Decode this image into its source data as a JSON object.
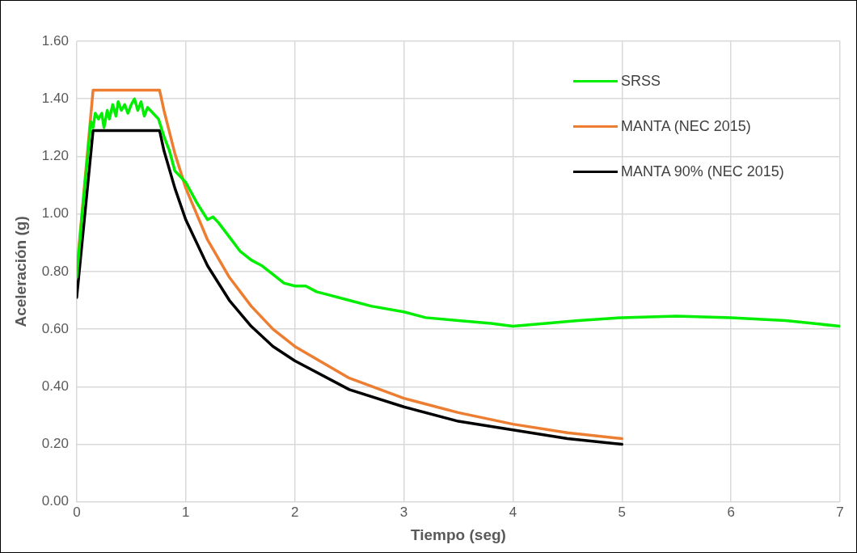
{
  "chart_data": {
    "type": "line",
    "xlabel": "Tiempo (seg)",
    "ylabel": "Aceleración (g)",
    "xlim": [
      0,
      7
    ],
    "xticks": [
      0,
      1,
      2,
      3,
      4,
      5,
      6,
      7
    ],
    "ylim": [
      0,
      1.6
    ],
    "yticks": [
      {
        "value": 0,
        "label": "0.00"
      },
      {
        "value": 0.2,
        "label": "0.20"
      },
      {
        "value": 0.4,
        "label": "0.40"
      },
      {
        "value": 0.6,
        "label": "0.60"
      },
      {
        "value": 0.8,
        "label": "0.80"
      },
      {
        "value": 1,
        "label": "1.00"
      },
      {
        "value": 1.2,
        "label": "1.20"
      },
      {
        "value": 1.4,
        "label": "1.40"
      },
      {
        "value": 1.6,
        "label": "1.60"
      }
    ],
    "grid": true,
    "legend": "top right",
    "marker": "none",
    "line_style": "solid",
    "series": [
      {
        "name": "SRSS",
        "color": "#00ee00",
        "x": [
          0,
          0.05,
          0.1,
          0.13,
          0.15,
          0.17,
          0.2,
          0.23,
          0.25,
          0.28,
          0.3,
          0.33,
          0.36,
          0.38,
          0.41,
          0.44,
          0.47,
          0.5,
          0.53,
          0.56,
          0.59,
          0.62,
          0.65,
          0.7,
          0.75,
          0.8,
          0.85,
          0.9,
          0.95,
          1,
          1.1,
          1.2,
          1.25,
          1.3,
          1.4,
          1.5,
          1.6,
          1.7,
          1.8,
          1.9,
          2,
          2.1,
          2.2,
          2.3,
          2.5,
          2.7,
          3,
          3.2,
          3.5,
          3.8,
          4,
          4.3,
          4.6,
          5,
          5.5,
          6,
          6.5,
          7
        ],
        "values": [
          0.78,
          1.0,
          1.2,
          1.32,
          1.3,
          1.35,
          1.33,
          1.35,
          1.3,
          1.36,
          1.33,
          1.38,
          1.34,
          1.39,
          1.36,
          1.38,
          1.35,
          1.38,
          1.4,
          1.36,
          1.39,
          1.34,
          1.37,
          1.35,
          1.33,
          1.27,
          1.22,
          1.15,
          1.13,
          1.11,
          1.04,
          0.98,
          0.99,
          0.97,
          0.92,
          0.87,
          0.84,
          0.82,
          0.79,
          0.76,
          0.75,
          0.75,
          0.73,
          0.72,
          0.7,
          0.68,
          0.66,
          0.64,
          0.63,
          0.62,
          0.61,
          0.62,
          0.63,
          0.64,
          0.645,
          0.64,
          0.63,
          0.61
        ]
      },
      {
        "name": "MANTA (NEC 2015)",
        "color": "#ed7d31",
        "x": [
          0,
          0.15,
          0.2,
          0.73,
          0.76,
          0.8,
          0.9,
          1,
          1.2,
          1.4,
          1.6,
          1.8,
          2,
          2.5,
          3,
          3.5,
          4,
          4.5,
          5
        ],
        "values": [
          0.8,
          1.43,
          1.43,
          1.43,
          1.43,
          1.36,
          1.21,
          1.09,
          0.91,
          0.78,
          0.68,
          0.6,
          0.54,
          0.43,
          0.36,
          0.31,
          0.27,
          0.24,
          0.22
        ]
      },
      {
        "name": "MANTA 90% (NEC 2015)",
        "color": "#000000",
        "x": [
          0,
          0.15,
          0.2,
          0.73,
          0.76,
          0.8,
          0.9,
          1,
          1.2,
          1.4,
          1.6,
          1.8,
          2,
          2.5,
          3,
          3.5,
          4,
          4.5,
          5
        ],
        "values": [
          0.71,
          1.29,
          1.29,
          1.29,
          1.29,
          1.22,
          1.09,
          0.98,
          0.82,
          0.7,
          0.61,
          0.54,
          0.49,
          0.39,
          0.33,
          0.28,
          0.25,
          0.22,
          0.2
        ]
      }
    ]
  }
}
